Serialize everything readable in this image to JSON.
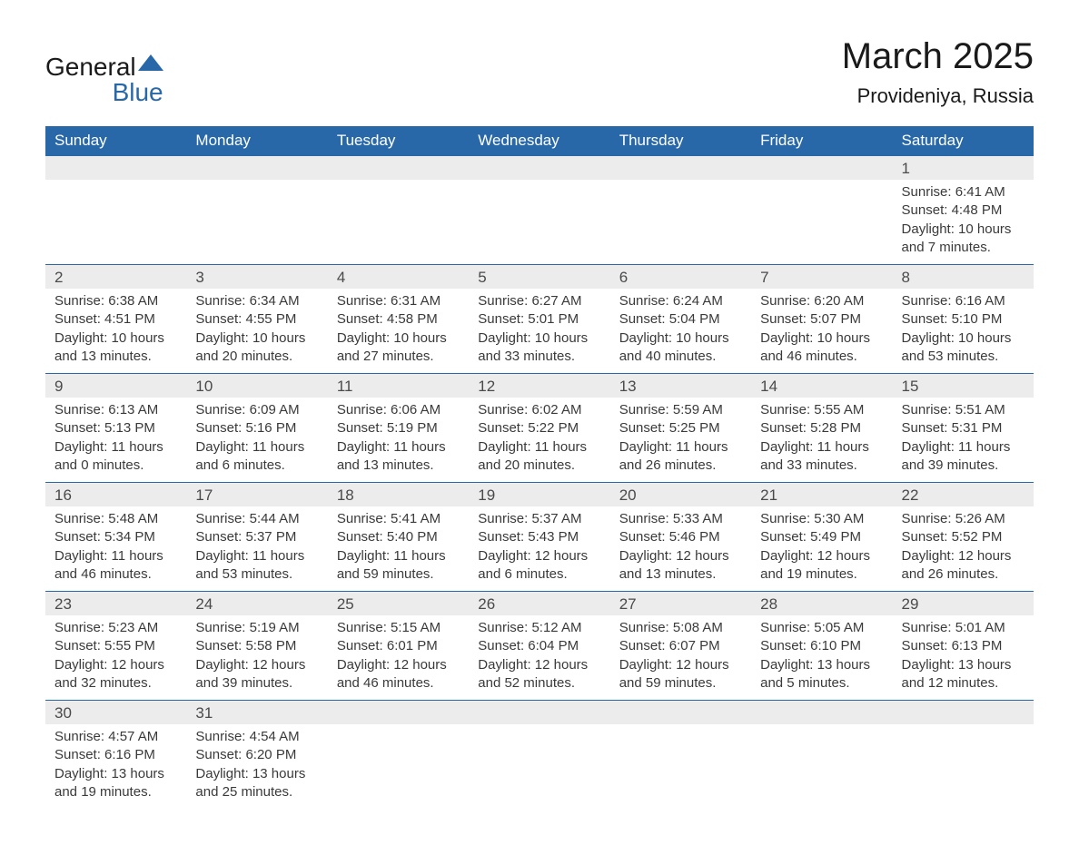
{
  "logo": {
    "text_general": "General",
    "text_blue": "Blue",
    "shape_color": "#2868a8"
  },
  "header": {
    "month_title": "March 2025",
    "location": "Provideniya, Russia"
  },
  "colors": {
    "header_bg": "#2868a8",
    "header_text": "#ffffff",
    "daynum_bg": "#ececec",
    "daynum_text": "#4a4a4a",
    "body_text": "#3a3a3a",
    "divider": "#2868a8"
  },
  "typography": {
    "month_title_fontsize": 40,
    "location_fontsize": 22,
    "dow_fontsize": 17,
    "daynum_fontsize": 17,
    "cell_fontsize": 15
  },
  "table": {
    "columns": [
      "Sunday",
      "Monday",
      "Tuesday",
      "Wednesday",
      "Thursday",
      "Friday",
      "Saturday"
    ],
    "weeks": [
      [
        null,
        null,
        null,
        null,
        null,
        null,
        {
          "day": "1",
          "sunrise": "Sunrise: 6:41 AM",
          "sunset": "Sunset: 4:48 PM",
          "daylight1": "Daylight: 10 hours",
          "daylight2": "and 7 minutes."
        }
      ],
      [
        {
          "day": "2",
          "sunrise": "Sunrise: 6:38 AM",
          "sunset": "Sunset: 4:51 PM",
          "daylight1": "Daylight: 10 hours",
          "daylight2": "and 13 minutes."
        },
        {
          "day": "3",
          "sunrise": "Sunrise: 6:34 AM",
          "sunset": "Sunset: 4:55 PM",
          "daylight1": "Daylight: 10 hours",
          "daylight2": "and 20 minutes."
        },
        {
          "day": "4",
          "sunrise": "Sunrise: 6:31 AM",
          "sunset": "Sunset: 4:58 PM",
          "daylight1": "Daylight: 10 hours",
          "daylight2": "and 27 minutes."
        },
        {
          "day": "5",
          "sunrise": "Sunrise: 6:27 AM",
          "sunset": "Sunset: 5:01 PM",
          "daylight1": "Daylight: 10 hours",
          "daylight2": "and 33 minutes."
        },
        {
          "day": "6",
          "sunrise": "Sunrise: 6:24 AM",
          "sunset": "Sunset: 5:04 PM",
          "daylight1": "Daylight: 10 hours",
          "daylight2": "and 40 minutes."
        },
        {
          "day": "7",
          "sunrise": "Sunrise: 6:20 AM",
          "sunset": "Sunset: 5:07 PM",
          "daylight1": "Daylight: 10 hours",
          "daylight2": "and 46 minutes."
        },
        {
          "day": "8",
          "sunrise": "Sunrise: 6:16 AM",
          "sunset": "Sunset: 5:10 PM",
          "daylight1": "Daylight: 10 hours",
          "daylight2": "and 53 minutes."
        }
      ],
      [
        {
          "day": "9",
          "sunrise": "Sunrise: 6:13 AM",
          "sunset": "Sunset: 5:13 PM",
          "daylight1": "Daylight: 11 hours",
          "daylight2": "and 0 minutes."
        },
        {
          "day": "10",
          "sunrise": "Sunrise: 6:09 AM",
          "sunset": "Sunset: 5:16 PM",
          "daylight1": "Daylight: 11 hours",
          "daylight2": "and 6 minutes."
        },
        {
          "day": "11",
          "sunrise": "Sunrise: 6:06 AM",
          "sunset": "Sunset: 5:19 PM",
          "daylight1": "Daylight: 11 hours",
          "daylight2": "and 13 minutes."
        },
        {
          "day": "12",
          "sunrise": "Sunrise: 6:02 AM",
          "sunset": "Sunset: 5:22 PM",
          "daylight1": "Daylight: 11 hours",
          "daylight2": "and 20 minutes."
        },
        {
          "day": "13",
          "sunrise": "Sunrise: 5:59 AM",
          "sunset": "Sunset: 5:25 PM",
          "daylight1": "Daylight: 11 hours",
          "daylight2": "and 26 minutes."
        },
        {
          "day": "14",
          "sunrise": "Sunrise: 5:55 AM",
          "sunset": "Sunset: 5:28 PM",
          "daylight1": "Daylight: 11 hours",
          "daylight2": "and 33 minutes."
        },
        {
          "day": "15",
          "sunrise": "Sunrise: 5:51 AM",
          "sunset": "Sunset: 5:31 PM",
          "daylight1": "Daylight: 11 hours",
          "daylight2": "and 39 minutes."
        }
      ],
      [
        {
          "day": "16",
          "sunrise": "Sunrise: 5:48 AM",
          "sunset": "Sunset: 5:34 PM",
          "daylight1": "Daylight: 11 hours",
          "daylight2": "and 46 minutes."
        },
        {
          "day": "17",
          "sunrise": "Sunrise: 5:44 AM",
          "sunset": "Sunset: 5:37 PM",
          "daylight1": "Daylight: 11 hours",
          "daylight2": "and 53 minutes."
        },
        {
          "day": "18",
          "sunrise": "Sunrise: 5:41 AM",
          "sunset": "Sunset: 5:40 PM",
          "daylight1": "Daylight: 11 hours",
          "daylight2": "and 59 minutes."
        },
        {
          "day": "19",
          "sunrise": "Sunrise: 5:37 AM",
          "sunset": "Sunset: 5:43 PM",
          "daylight1": "Daylight: 12 hours",
          "daylight2": "and 6 minutes."
        },
        {
          "day": "20",
          "sunrise": "Sunrise: 5:33 AM",
          "sunset": "Sunset: 5:46 PM",
          "daylight1": "Daylight: 12 hours",
          "daylight2": "and 13 minutes."
        },
        {
          "day": "21",
          "sunrise": "Sunrise: 5:30 AM",
          "sunset": "Sunset: 5:49 PM",
          "daylight1": "Daylight: 12 hours",
          "daylight2": "and 19 minutes."
        },
        {
          "day": "22",
          "sunrise": "Sunrise: 5:26 AM",
          "sunset": "Sunset: 5:52 PM",
          "daylight1": "Daylight: 12 hours",
          "daylight2": "and 26 minutes."
        }
      ],
      [
        {
          "day": "23",
          "sunrise": "Sunrise: 5:23 AM",
          "sunset": "Sunset: 5:55 PM",
          "daylight1": "Daylight: 12 hours",
          "daylight2": "and 32 minutes."
        },
        {
          "day": "24",
          "sunrise": "Sunrise: 5:19 AM",
          "sunset": "Sunset: 5:58 PM",
          "daylight1": "Daylight: 12 hours",
          "daylight2": "and 39 minutes."
        },
        {
          "day": "25",
          "sunrise": "Sunrise: 5:15 AM",
          "sunset": "Sunset: 6:01 PM",
          "daylight1": "Daylight: 12 hours",
          "daylight2": "and 46 minutes."
        },
        {
          "day": "26",
          "sunrise": "Sunrise: 5:12 AM",
          "sunset": "Sunset: 6:04 PM",
          "daylight1": "Daylight: 12 hours",
          "daylight2": "and 52 minutes."
        },
        {
          "day": "27",
          "sunrise": "Sunrise: 5:08 AM",
          "sunset": "Sunset: 6:07 PM",
          "daylight1": "Daylight: 12 hours",
          "daylight2": "and 59 minutes."
        },
        {
          "day": "28",
          "sunrise": "Sunrise: 5:05 AM",
          "sunset": "Sunset: 6:10 PM",
          "daylight1": "Daylight: 13 hours",
          "daylight2": "and 5 minutes."
        },
        {
          "day": "29",
          "sunrise": "Sunrise: 5:01 AM",
          "sunset": "Sunset: 6:13 PM",
          "daylight1": "Daylight: 13 hours",
          "daylight2": "and 12 minutes."
        }
      ],
      [
        {
          "day": "30",
          "sunrise": "Sunrise: 4:57 AM",
          "sunset": "Sunset: 6:16 PM",
          "daylight1": "Daylight: 13 hours",
          "daylight2": "and 19 minutes."
        },
        {
          "day": "31",
          "sunrise": "Sunrise: 4:54 AM",
          "sunset": "Sunset: 6:20 PM",
          "daylight1": "Daylight: 13 hours",
          "daylight2": "and 25 minutes."
        },
        null,
        null,
        null,
        null,
        null
      ]
    ]
  }
}
